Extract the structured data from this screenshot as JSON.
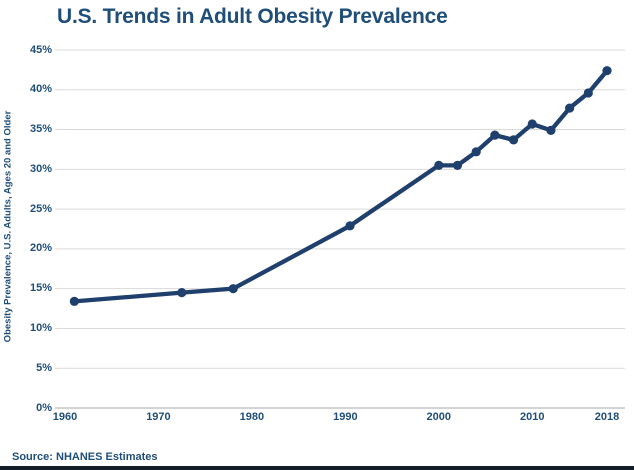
{
  "chart_data": {
    "type": "line",
    "title": "U.S. Trends in Adult Obesity Prevalence",
    "ylabel": "Obesity Prevalence, U.S. Adults, Ages 20 and Older",
    "xlabel": "",
    "x_tick_labels": [
      "1960",
      "1970",
      "1980",
      "1990",
      "2000",
      "2010",
      "2018"
    ],
    "x_tick_years": [
      1960,
      1970,
      1980,
      1990,
      2000,
      2010,
      2018
    ],
    "y_tick_labels": [
      "0%",
      "5%",
      "10%",
      "15%",
      "20%",
      "25%",
      "30%",
      "35%",
      "40%",
      "45%"
    ],
    "y_ticks": [
      0,
      5,
      10,
      15,
      20,
      25,
      30,
      35,
      40,
      45
    ],
    "xlim": [
      1960,
      2018
    ],
    "ylim": [
      0,
      45
    ],
    "grid": "horizontal-only",
    "legend_position": "none",
    "series": [
      {
        "name": "Obesity Prevalence",
        "x": [
          1961,
          1972.5,
          1978,
          1990.5,
          2000,
          2002,
          2004,
          2006,
          2008,
          2010,
          2012,
          2014,
          2016,
          2018
        ],
        "values": [
          13.4,
          14.5,
          15.0,
          22.9,
          30.5,
          30.5,
          32.2,
          34.3,
          33.7,
          35.7,
          34.9,
          37.7,
          39.6,
          42.4
        ],
        "color": "#1f3f6d",
        "marker": "circle"
      }
    ]
  },
  "footer": {
    "source": "Source: NHANES Estimates"
  },
  "colors": {
    "title_text": "#1F4E79",
    "axis_label_text": "#1F4E79",
    "line": "#1f3f6d",
    "gridline": "#d9d9d9",
    "axis_line": "#b9b9b9",
    "bottom_bar": "#141c28",
    "background": "#ffffff"
  }
}
